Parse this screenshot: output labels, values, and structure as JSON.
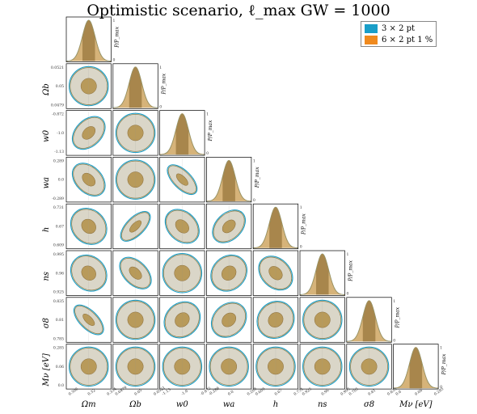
{
  "chart_data": {
    "type": "corner",
    "title": "Optimistic scenario, ℓ_max GW = 1000",
    "series": [
      {
        "name": "3 × 2 pt",
        "color": "#1a9ec8"
      },
      {
        "name": "6 × 2 pt 1 %",
        "color": "#f08a1e"
      }
    ],
    "fill_color": "#d6d2c2",
    "inner_fill_color": "#b89a5a",
    "diag_fill_color": "#c89a4c",
    "diag_band_color": "#a8864c",
    "params": [
      {
        "name": "Ω_m",
        "label": "Ωm",
        "ticks": [
          "0.306",
          "0.32",
          "0.334"
        ],
        "range": [
          0.306,
          0.334
        ],
        "center": 0.32
      },
      {
        "name": "Ω_b",
        "label": "Ωb",
        "ticks": [
          "0.0479",
          "0.05",
          "0.0521"
        ],
        "range": [
          0.0479,
          0.0521
        ],
        "center": 0.05
      },
      {
        "name": "w_0",
        "label": "w0",
        "ticks": [
          "-1.13",
          "-1.0",
          "-0.872"
        ],
        "range": [
          -1.13,
          -0.872
        ],
        "center": -1.0
      },
      {
        "name": "w_a",
        "label": "wa",
        "ticks": [
          "-0.289",
          "0.0",
          "0.289"
        ],
        "range": [
          -0.289,
          0.289
        ],
        "center": 0.0
      },
      {
        "name": "h",
        "label": "h",
        "ticks": [
          "0.609",
          "0.67",
          "0.731"
        ],
        "range": [
          0.609,
          0.731
        ],
        "center": 0.67
      },
      {
        "name": "n_s",
        "label": "ns",
        "ticks": [
          "0.925",
          "0.96",
          "0.995"
        ],
        "range": [
          0.925,
          0.995
        ],
        "center": 0.96
      },
      {
        "name": "σ_8",
        "label": "σ8",
        "ticks": [
          "0.785",
          "0.81",
          "0.835"
        ],
        "range": [
          0.785,
          0.835
        ],
        "center": 0.81
      },
      {
        "name": "M_ν [eV]",
        "label": "Mν [eV]",
        "ticks": [
          "0.0",
          "0.06",
          "0.285"
        ],
        "range": [
          0.0,
          0.285
        ],
        "center": 0.06
      }
    ],
    "diag_ylabel": "P/P_max",
    "diag_yticks": [
      "0",
      "1"
    ],
    "correlations": {
      "1,0": 0.0,
      "2,0": 0.6,
      "2,1": 0.0,
      "3,0": -0.6,
      "3,1": 0.0,
      "3,2": -0.85,
      "4,0": -0.3,
      "4,1": 0.85,
      "4,2": -0.5,
      "4,3": 0.6,
      "5,0": -0.3,
      "5,1": -0.7,
      "5,2": 0.0,
      "5,3": 0.3,
      "5,4": -0.5,
      "6,0": -0.85,
      "6,1": 0.0,
      "6,2": 0.3,
      "6,3": 0.4,
      "6,4": 0.2,
      "6,5": 0.0,
      "7,0": 0.0,
      "7,1": 0.0,
      "7,2": 0.0,
      "7,3": 0.0,
      "7,4": 0.0,
      "7,5": 0.0,
      "7,6": 0.0
    }
  }
}
